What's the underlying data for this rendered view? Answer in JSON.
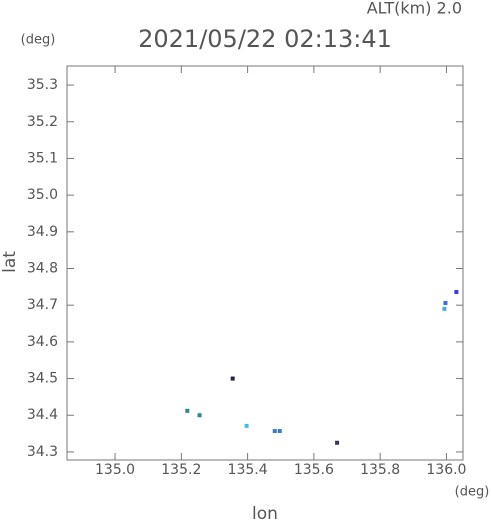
{
  "chart_data": {
    "type": "scatter",
    "title": "2021/05/22 02:13:41",
    "subtitle": "ALT(km) 2.0",
    "x_label": "lon",
    "y_label": "lat",
    "x_unit": "(deg)",
    "y_unit": "(deg)",
    "x": [
      136.03,
      135.997,
      135.994,
      135.355,
      135.218,
      135.255,
      135.397,
      135.482,
      135.497,
      135.67
    ],
    "values": [
      34.736,
      34.706,
      34.69,
      34.5,
      34.412,
      34.4,
      34.371,
      34.357,
      34.357,
      34.325
    ],
    "colors": [
      "#3a3adf",
      "#3a6af0",
      "#4aa8f0",
      "#222244",
      "#2a8a8a",
      "#2a8a8a",
      "#40c0e0",
      "#3a7ad0",
      "#3a7ad0",
      "#333366"
    ],
    "xlim": [
      134.855,
      136.05
    ],
    "ylim": [
      34.278,
      35.352
    ],
    "xticks": [
      {
        "value": 135,
        "label": "135.0"
      },
      135.2,
      135.4,
      135.6,
      135.8,
      {
        "value": 136,
        "label": "136.0"
      }
    ],
    "yticks": [
      34.3,
      34.4,
      34.5,
      34.6,
      34.7,
      34.8,
      34.9,
      {
        "value": 35,
        "label": "35.0"
      },
      35.1,
      35.2,
      35.3
    ]
  }
}
